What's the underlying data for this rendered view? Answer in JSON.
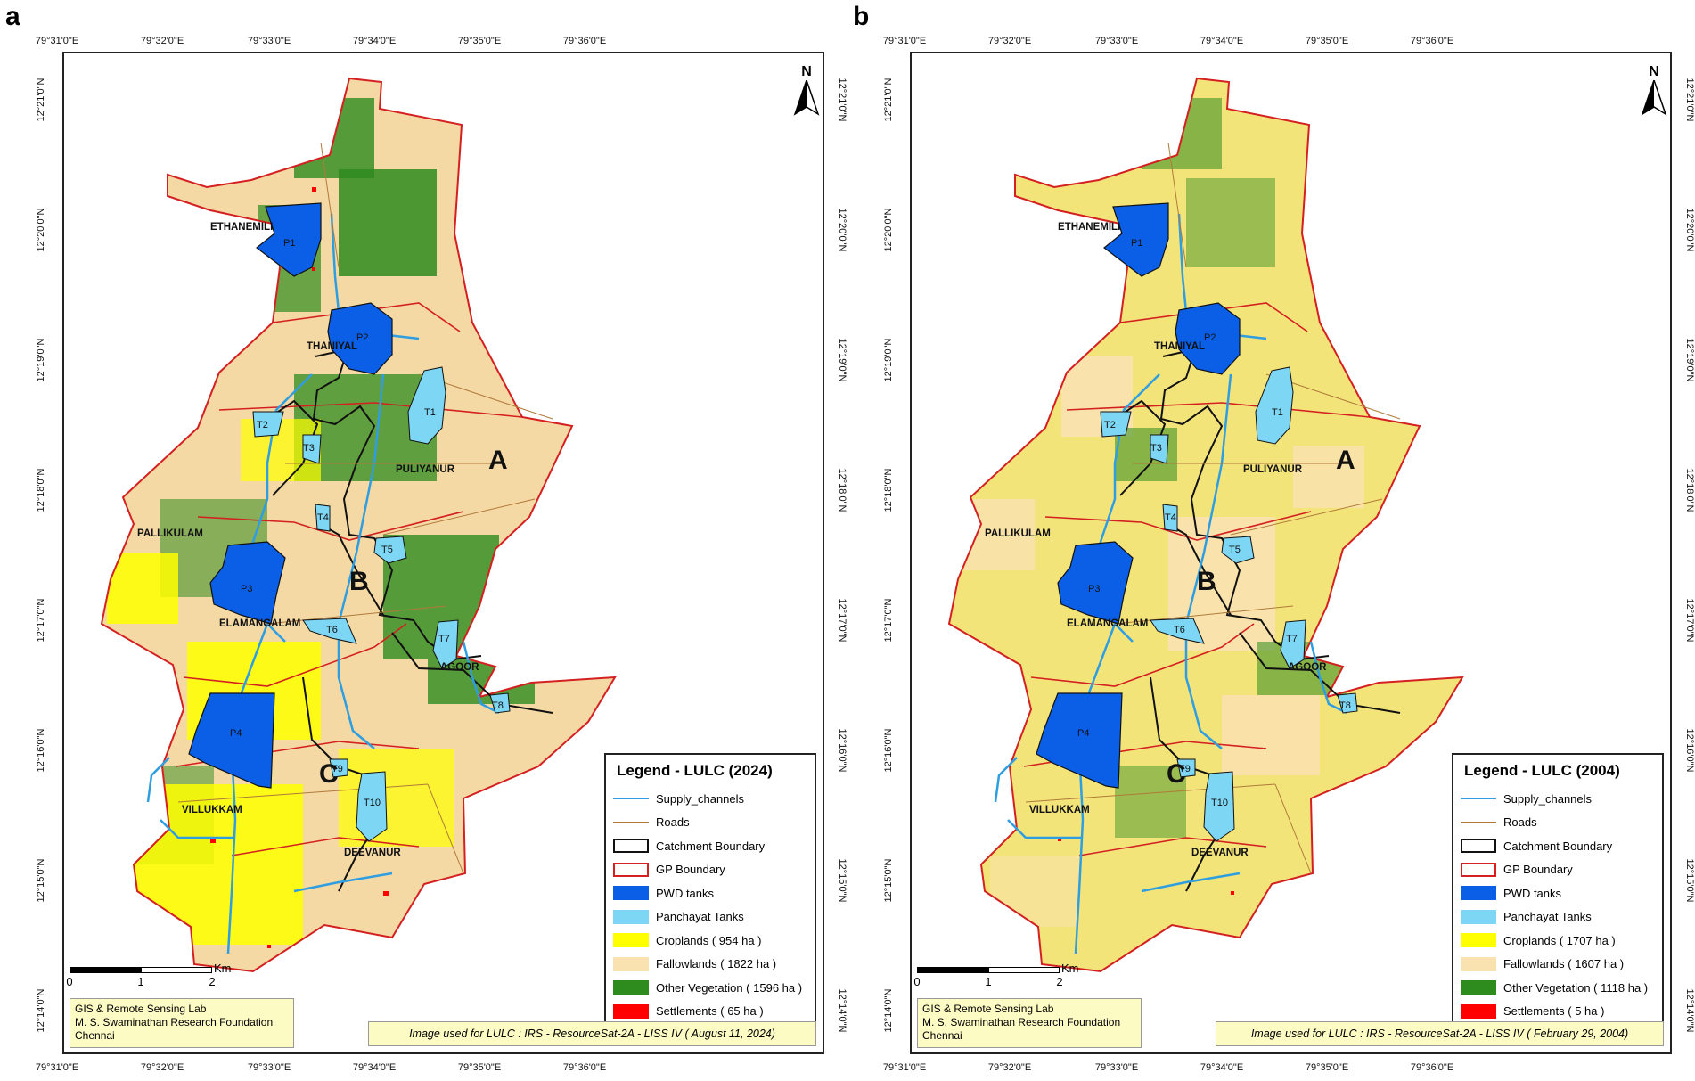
{
  "panels": [
    {
      "letter": "a",
      "legend_title": "Legend - LULC (2024)",
      "legend": {
        "supply": "Supply_channels",
        "roads": "Roads",
        "catchment": "Catchment Boundary",
        "gp": "GP Boundary",
        "pwd": "PWD tanks",
        "panchayat": "Panchayat Tanks",
        "crop": "Croplands ( 954  ha )",
        "fallow": "Fallowlands ( 1822 ha )",
        "veg": "Other Vegetation ( 1596 ha )",
        "settle": "Settlements ( 65 ha )"
      },
      "source": "Image used for LULC : IRS - ResourceSat-2A - LISS IV ( August 11, 2024)"
    },
    {
      "letter": "b",
      "legend_title": "Legend - LULC (2004)",
      "legend": {
        "supply": "Supply_channels",
        "roads": "Roads",
        "catchment": "Catchment Boundary",
        "gp": "GP Boundary",
        "pwd": "PWD tanks",
        "panchayat": "Panchayat Tanks",
        "crop": "Croplands ( 1707  ha )",
        "fallow": "Fallowlands ( 1607 ha )",
        "veg": "Other Vegetation ( 1118 ha )",
        "settle": "Settlements ( 5 ha )"
      },
      "source": "Image used for LULC : IRS - ResourceSat-2A - LISS IV ( February 29, 2004)"
    }
  ],
  "lon_ticks": [
    "79°31'0\"E",
    "79°32'0\"E",
    "79°33'0\"E",
    "79°34'0\"E",
    "79°35'0\"E",
    "79°36'0\"E"
  ],
  "lat_ticks": [
    "12°21'0\"N",
    "12°20'0\"N",
    "12°19'0\"N",
    "12°18'0\"N",
    "12°17'0\"N",
    "12°16'0\"N",
    "12°15'0\"N",
    "12°14'0\"N"
  ],
  "credit": {
    "line1": "GIS & Remote Sensing Lab",
    "line2": "M. S. Swaminathan Research Foundation",
    "line3": "Chennai"
  },
  "scale": {
    "unit": "Km",
    "l0": "0",
    "l1": "1",
    "l2": "2"
  },
  "north": "N",
  "villages": {
    "ethanemili": "ETHANEMILI",
    "thaniyal": "THANIYAL",
    "puliyanur": "PULIYANUR",
    "pallikulam": "PALLIKULAM",
    "elamangalam": "ELAMANGALAM",
    "agoor": "AGOOR",
    "villukkam": "VILLUKKAM",
    "deevanur": "DEEVANUR"
  },
  "zones": {
    "a": "A",
    "b": "B",
    "c": "C"
  },
  "tanks": {
    "p1": "P1",
    "p2": "P2",
    "p3": "P3",
    "p4": "P4",
    "t1": "T1",
    "t2": "T2",
    "t3": "T3",
    "t4": "T4",
    "t5": "T5",
    "t6": "T6",
    "t7": "T7",
    "t8": "T8",
    "t9": "T9",
    "t10": "T10"
  },
  "colors": {
    "crop": "#ffff00",
    "fallow": "#f9e1b0",
    "veg": "#2e8b1e",
    "settle": "#ff0000",
    "pwd": "#0a5fe6",
    "panchayat": "#7ed6f5",
    "gp": "#d42020",
    "roads": "#b07a3a",
    "supply": "#2f9ee0",
    "panel_a_bg": "#f5d9a4",
    "panel_b_bg": "#f3e47a"
  }
}
